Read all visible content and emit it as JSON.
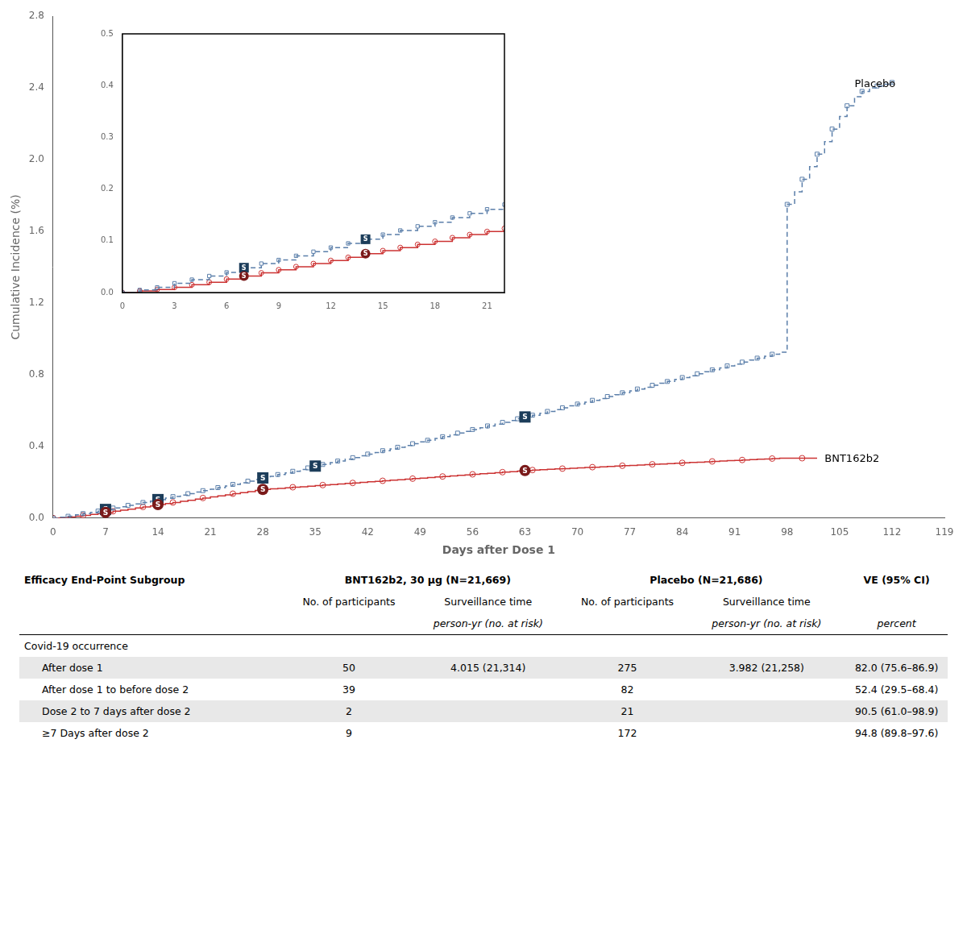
{
  "chart_data": [
    {
      "type": "step",
      "xlabel": "Days after Dose 1",
      "ylabel": "Cumulative Incidence (%)",
      "xlim": [
        0,
        119
      ],
      "xticks": [
        0,
        7,
        14,
        21,
        28,
        35,
        42,
        49,
        56,
        63,
        70,
        77,
        84,
        91,
        98,
        105,
        112,
        119
      ],
      "ylim": [
        0,
        2.8
      ],
      "yticks": [
        {
          "value": 0,
          "label": "0.0"
        },
        0.4,
        0.8,
        1.2,
        1.6,
        {
          "value": 2,
          "label": "2.0"
        },
        2.4,
        2.8
      ],
      "grid": false,
      "series": [
        {
          "name": "Placebo",
          "color": "#5b7faa",
          "line_style": "dashed",
          "marker": "square",
          "x": [
            0,
            1,
            2,
            3,
            4,
            5,
            6,
            7,
            8,
            9,
            10,
            11,
            12,
            13,
            14,
            15,
            16,
            17,
            18,
            19,
            20,
            21,
            22,
            23,
            24,
            25,
            26,
            27,
            28,
            29,
            30,
            31,
            32,
            33,
            34,
            35,
            36,
            37,
            38,
            39,
            40,
            41,
            42,
            43,
            44,
            45,
            46,
            47,
            48,
            49,
            50,
            51,
            52,
            53,
            54,
            55,
            56,
            57,
            58,
            59,
            60,
            61,
            62,
            63,
            64,
            65,
            66,
            67,
            68,
            69,
            70,
            71,
            72,
            73,
            74,
            75,
            76,
            77,
            78,
            79,
            80,
            81,
            82,
            83,
            84,
            85,
            86,
            87,
            88,
            89,
            90,
            91,
            92,
            93,
            94,
            95,
            96,
            97,
            98,
            99,
            100,
            101,
            102,
            103,
            104,
            105,
            106,
            107,
            108,
            109,
            110,
            111,
            112
          ],
          "values": [
            0.0,
            0.005,
            0.01,
            0.018,
            0.025,
            0.032,
            0.039,
            0.048,
            0.056,
            0.063,
            0.071,
            0.079,
            0.087,
            0.095,
            0.103,
            0.112,
            0.12,
            0.128,
            0.136,
            0.145,
            0.153,
            0.161,
            0.17,
            0.179,
            0.188,
            0.197,
            0.206,
            0.215,
            0.224,
            0.233,
            0.243,
            0.252,
            0.261,
            0.271,
            0.28,
            0.29,
            0.299,
            0.309,
            0.318,
            0.328,
            0.337,
            0.347,
            0.357,
            0.366,
            0.376,
            0.386,
            0.395,
            0.405,
            0.415,
            0.425,
            0.434,
            0.444,
            0.454,
            0.464,
            0.474,
            0.484,
            0.494,
            0.504,
            0.514,
            0.524,
            0.534,
            0.544,
            0.554,
            0.564,
            0.574,
            0.585,
            0.595,
            0.605,
            0.615,
            0.626,
            0.636,
            0.646,
            0.657,
            0.667,
            0.678,
            0.688,
            0.699,
            0.709,
            0.72,
            0.73,
            0.741,
            0.752,
            0.762,
            0.773,
            0.784,
            0.794,
            0.805,
            0.816,
            0.827,
            0.838,
            0.849,
            0.859,
            0.87,
            0.881,
            0.892,
            0.903,
            0.914,
            0.925,
            1.75,
            1.82,
            1.89,
            1.96,
            2.03,
            2.1,
            2.17,
            2.24,
            2.3,
            2.35,
            2.38,
            2.4,
            2.41,
            2.42,
            2.43
          ]
        },
        {
          "name": "BNT162b2",
          "color": "#cc3333",
          "line_style": "solid",
          "marker": "circle",
          "x": [
            0,
            1,
            2,
            3,
            4,
            5,
            6,
            7,
            8,
            9,
            10,
            11,
            12,
            13,
            14,
            15,
            16,
            17,
            18,
            19,
            20,
            21,
            22,
            23,
            24,
            25,
            26,
            27,
            28,
            29,
            30,
            31,
            32,
            33,
            34,
            35,
            36,
            37,
            38,
            39,
            40,
            41,
            42,
            43,
            44,
            45,
            46,
            47,
            48,
            49,
            50,
            51,
            52,
            53,
            54,
            55,
            56,
            57,
            58,
            59,
            60,
            61,
            62,
            63,
            64,
            65,
            66,
            67,
            68,
            69,
            70,
            71,
            72,
            73,
            74,
            75,
            76,
            77,
            78,
            79,
            80,
            81,
            82,
            83,
            84,
            85,
            86,
            87,
            88,
            89,
            90,
            91,
            92,
            93,
            94,
            95,
            96,
            97,
            98,
            99,
            100,
            101,
            102
          ],
          "values": [
            0.0,
            0.003,
            0.006,
            0.01,
            0.015,
            0.02,
            0.026,
            0.032,
            0.038,
            0.044,
            0.05,
            0.056,
            0.062,
            0.068,
            0.075,
            0.081,
            0.087,
            0.093,
            0.099,
            0.106,
            0.112,
            0.118,
            0.124,
            0.13,
            0.136,
            0.142,
            0.148,
            0.154,
            0.16,
            0.163,
            0.166,
            0.169,
            0.172,
            0.175,
            0.178,
            0.181,
            0.184,
            0.187,
            0.19,
            0.193,
            0.196,
            0.199,
            0.202,
            0.205,
            0.208,
            0.211,
            0.214,
            0.217,
            0.22,
            0.223,
            0.226,
            0.229,
            0.232,
            0.235,
            0.238,
            0.241,
            0.244,
            0.247,
            0.25,
            0.253,
            0.256,
            0.259,
            0.262,
            0.265,
            0.268,
            0.27,
            0.272,
            0.274,
            0.276,
            0.278,
            0.28,
            0.282,
            0.284,
            0.286,
            0.288,
            0.29,
            0.292,
            0.294,
            0.296,
            0.298,
            0.3,
            0.302,
            0.304,
            0.306,
            0.308,
            0.31,
            0.312,
            0.314,
            0.316,
            0.318,
            0.32,
            0.322,
            0.324,
            0.326,
            0.328,
            0.33,
            0.332,
            0.334,
            0.334,
            0.334,
            0.334,
            0.334,
            0.334
          ]
        }
      ],
      "annotations": [
        {
          "text": "S",
          "x": 7,
          "y": 0.048,
          "marker": "square",
          "color": "#1c3d5a"
        },
        {
          "text": "S",
          "x": 14,
          "y": 0.103,
          "marker": "square",
          "color": "#1c3d5a"
        },
        {
          "text": "S",
          "x": 28,
          "y": 0.224,
          "marker": "square",
          "color": "#1c3d5a"
        },
        {
          "text": "S",
          "x": 35,
          "y": 0.29,
          "marker": "square",
          "color": "#1c3d5a"
        },
        {
          "text": "S",
          "x": 63,
          "y": 0.564,
          "marker": "square",
          "color": "#1c3d5a"
        },
        {
          "text": "S",
          "x": 7,
          "y": 0.032,
          "marker": "circle",
          "color": "#7a1a1a"
        },
        {
          "text": "S",
          "x": 14,
          "y": 0.075,
          "marker": "circle",
          "color": "#7a1a1a"
        },
        {
          "text": "S",
          "x": 28,
          "y": 0.16,
          "marker": "circle",
          "color": "#7a1a1a"
        },
        {
          "text": "S",
          "x": 63,
          "y": 0.265,
          "marker": "circle",
          "color": "#7a1a1a"
        },
        {
          "text": "Placebo",
          "x": 107,
          "y": 2.39
        },
        {
          "text": "BNT162b2",
          "x": 103,
          "y": 0.3
        }
      ]
    },
    {
      "type": "step",
      "xlim": [
        0,
        22
      ],
      "xticks": [
        0,
        3,
        6,
        9,
        12,
        15,
        18,
        21
      ],
      "ylim": [
        0,
        0.5
      ],
      "yticks": [
        {
          "value": 0,
          "label": "0.0"
        },
        0.1,
        0.2,
        0.3,
        0.4,
        0.5
      ],
      "grid": false,
      "series": [
        {
          "name": "Placebo",
          "color": "#5b7faa",
          "line_style": "dashed",
          "marker": "square",
          "x": [
            0,
            1,
            2,
            3,
            4,
            5,
            6,
            7,
            8,
            9,
            10,
            11,
            12,
            13,
            14,
            15,
            16,
            17,
            18,
            19,
            20,
            21,
            22
          ],
          "values": [
            0.0,
            0.005,
            0.01,
            0.018,
            0.025,
            0.032,
            0.039,
            0.048,
            0.056,
            0.063,
            0.071,
            0.079,
            0.087,
            0.095,
            0.103,
            0.112,
            0.12,
            0.128,
            0.136,
            0.145,
            0.153,
            0.161,
            0.17
          ]
        },
        {
          "name": "BNT162b2",
          "color": "#cc3333",
          "line_style": "solid",
          "marker": "circle",
          "x": [
            0,
            1,
            2,
            3,
            4,
            5,
            6,
            7,
            8,
            9,
            10,
            11,
            12,
            13,
            14,
            15,
            16,
            17,
            18,
            19,
            20,
            21,
            22
          ],
          "values": [
            0.0,
            0.003,
            0.006,
            0.01,
            0.015,
            0.02,
            0.026,
            0.032,
            0.038,
            0.044,
            0.05,
            0.056,
            0.062,
            0.068,
            0.075,
            0.081,
            0.087,
            0.093,
            0.099,
            0.106,
            0.112,
            0.118,
            0.124
          ]
        }
      ],
      "annotations": [
        {
          "text": "S",
          "x": 7,
          "y": 0.048,
          "marker": "square",
          "color": "#1c3d5a"
        },
        {
          "text": "S",
          "x": 14,
          "y": 0.103,
          "marker": "square",
          "color": "#1c3d5a"
        },
        {
          "text": "S",
          "x": 7,
          "y": 0.032,
          "marker": "circle",
          "color": "#7a1a1a"
        },
        {
          "text": "S",
          "x": 14,
          "y": 0.075,
          "marker": "circle",
          "color": "#7a1a1a"
        }
      ]
    },
    {
      "type": "table",
      "headers": [
        "Efficacy End-Point Subgroup",
        "BNT162b2, 30 μg (N=21,669)",
        "Placebo (N=21,686)",
        "VE (95% CI)"
      ],
      "subheaders": [
        null,
        "No. of participants",
        "Surveillance time",
        "No. of participants",
        "Surveillance time",
        null
      ],
      "units": [
        null,
        null,
        "person-yr (no. at risk)",
        null,
        "person-yr (no. at risk)",
        "percent"
      ],
      "groups": [
        {
          "label": "Covid-19 occurrence",
          "rows": [
            {
              "label": "After dose 1",
              "values": [
                50,
                "4.015 (21,314)",
                275,
                "3.982 (21,258)",
                "82.0 (75.6–86.9)"
              ]
            },
            {
              "label": "After dose 1 to before dose 2",
              "values": [
                39,
                null,
                82,
                null,
                "52.4 (29.5–68.4)"
              ]
            },
            {
              "label": "Dose 2 to 7 days after dose 2",
              "values": [
                2,
                null,
                21,
                null,
                "90.5 (61.0–98.9)"
              ]
            },
            {
              "label": "≥7 Days after dose 2",
              "values": [
                9,
                null,
                172,
                null,
                "94.8 (89.8–97.6)"
              ]
            }
          ]
        }
      ]
    }
  ]
}
